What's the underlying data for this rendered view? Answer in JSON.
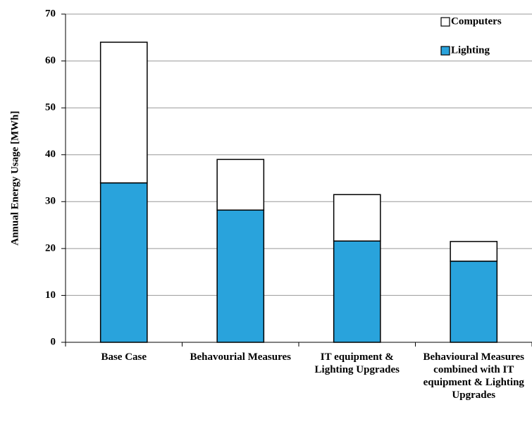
{
  "chart_data": {
    "type": "stacked-bar",
    "y_label": "Annual Energy Usage [MWh]",
    "categories": [
      "Base Case",
      "Behavourial Measures",
      "IT equipment & Lighting Upgrades",
      "Behavioural Measures combined with IT equipment & Lighting Upgrades"
    ],
    "series": [
      {
        "name": "Lighting",
        "color": "#29a3dc",
        "values": [
          34,
          28.2,
          21.6,
          17.3
        ]
      },
      {
        "name": "Computers",
        "color": "#ffffff",
        "values": [
          30,
          10.8,
          9.9,
          4.2
        ]
      }
    ],
    "ylim": [
      0,
      70
    ],
    "yticks": [
      0,
      10,
      20,
      30,
      40,
      50,
      60,
      70
    ],
    "grid": true,
    "legend": "top-right"
  }
}
